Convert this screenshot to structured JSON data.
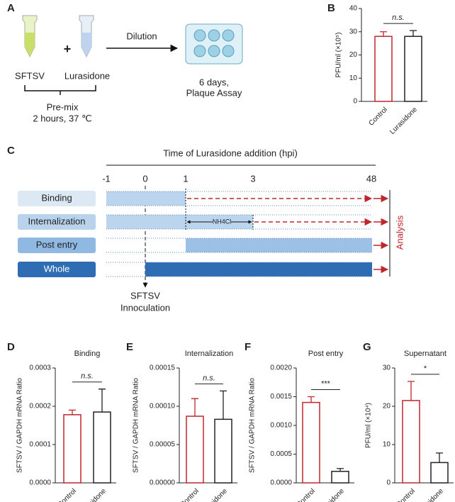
{
  "panel_labels": [
    "A",
    "B",
    "C",
    "D",
    "E",
    "F",
    "G"
  ],
  "scheme": {
    "virus": "SFTSV",
    "plus": "+",
    "drug": "Lurasidone",
    "step": "Dilution",
    "result": [
      "6 days,",
      "Plaque Assay"
    ],
    "premix": [
      "Pre-mix",
      "2 hours, 37 ℃"
    ]
  },
  "timeline": {
    "title": "Time of Lurasidone addition (hpi)",
    "ticks": [
      -1,
      0,
      1,
      3,
      48
    ],
    "rows": [
      "Binding",
      "Internalization",
      "Post entry",
      "Whole"
    ],
    "reagent": "NH4Cl",
    "analysis": "Analysis",
    "inoculation": [
      "SFTSV",
      "Innoculation"
    ]
  },
  "chart_data": [
    {
      "type": "bar",
      "ylabel": "PFU/ml (×10⁵)",
      "categories": [
        "Control",
        "Lurasidone"
      ],
      "values": [
        28,
        28
      ],
      "errors": [
        2,
        2.5
      ],
      "colors": [
        "#c0272d",
        "#222222"
      ],
      "ylim": [
        0,
        40
      ],
      "yticks": [
        0,
        10,
        20,
        30,
        40
      ],
      "annotation": "n.s."
    },
    {
      "type": "bar",
      "title": "Binding",
      "ylabel": "SFTSV / GAPDH mRNA Ratio",
      "categories": [
        "Control",
        "Lurasidone"
      ],
      "values": [
        0.000178,
        0.000185
      ],
      "errors": [
        1.2e-05,
        6e-05
      ],
      "colors": [
        "#c0272d",
        "#222222"
      ],
      "ylim": [
        0,
        0.0003
      ],
      "yticks": [
        {
          "value": 0,
          "label": "0.0000"
        },
        {
          "value": 0.0001,
          "label": "0.0001"
        },
        {
          "value": 0.0002,
          "label": "0.0002"
        },
        {
          "value": 0.0003,
          "label": "0.0003"
        }
      ],
      "annotation": "n.s."
    },
    {
      "type": "bar",
      "title": "Internalization",
      "ylabel": "SFTSV / GAPDH mRNA Ratio",
      "categories": [
        "Control",
        "Lurasidone"
      ],
      "values": [
        8.7e-05,
        8.3e-05
      ],
      "errors": [
        2.3e-05,
        3.7e-05
      ],
      "colors": [
        "#c0272d",
        "#222222"
      ],
      "ylim": [
        0,
        0.00015
      ],
      "yticks": [
        {
          "value": 0,
          "label": "0.00000"
        },
        {
          "value": 5e-05,
          "label": "0.00005"
        },
        {
          "value": 0.0001,
          "label": "0.00010"
        },
        {
          "value": 0.00015,
          "label": "0.00015"
        }
      ],
      "annotation": "n.s."
    },
    {
      "type": "bar",
      "title": "Post entry",
      "ylabel": "SFTSV / GAPDH mRNA Ratio",
      "categories": [
        "Control",
        "Lurasidone"
      ],
      "values": [
        0.0014,
        0.0002
      ],
      "errors": [
        0.0001,
        5e-05
      ],
      "colors": [
        "#c0272d",
        "#222222"
      ],
      "ylim": [
        0,
        0.002
      ],
      "yticks": [
        {
          "value": 0,
          "label": "0.0000"
        },
        {
          "value": 0.0005,
          "label": "0.0005"
        },
        {
          "value": 0.001,
          "label": "0.0010"
        },
        {
          "value": 0.0015,
          "label": "0.0015"
        },
        {
          "value": 0.002,
          "label": "0.0020"
        }
      ],
      "annotation": "***"
    },
    {
      "type": "bar",
      "title": "Supernatant",
      "ylabel": "PFU/ml (×10⁴)",
      "categories": [
        "Control",
        "Lurasidone"
      ],
      "values": [
        21.5,
        5.3
      ],
      "errors": [
        5,
        2.5
      ],
      "colors": [
        "#c0272d",
        "#222222"
      ],
      "ylim": [
        0,
        30
      ],
      "yticks": [
        0,
        10,
        20,
        30
      ],
      "annotation": "*"
    }
  ]
}
